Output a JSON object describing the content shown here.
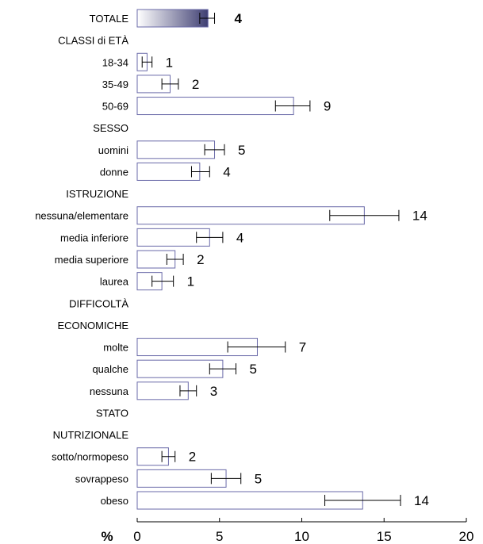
{
  "chart_data": {
    "type": "bar",
    "orientation": "horizontal",
    "x_axis_symbol": "%",
    "xlim": [
      0,
      20
    ],
    "x_ticks": [
      "0",
      "5",
      "10",
      "15",
      "20"
    ],
    "grid": false,
    "legend": "none",
    "colors": {
      "bar_fill": "#ffffff",
      "bar_border": "#6a6aa8",
      "total_gradient_start": "#ffffff",
      "total_gradient_end": "#3f3f72",
      "error_bar": "#000000"
    },
    "rows": [
      {
        "label": "TOTALE",
        "kind": "total",
        "value": 4.3,
        "ci": [
          3.8,
          4.7
        ],
        "value_label": "4"
      },
      {
        "label": "CLASSI di ETÀ",
        "kind": "header"
      },
      {
        "label": "18-34",
        "kind": "bar",
        "value": 0.6,
        "ci": [
          0.3,
          0.9
        ],
        "value_label": "1"
      },
      {
        "label": "35-49",
        "kind": "bar",
        "value": 2.0,
        "ci": [
          1.5,
          2.5
        ],
        "value_label": "2"
      },
      {
        "label": "50-69",
        "kind": "bar",
        "value": 9.5,
        "ci": [
          8.4,
          10.5
        ],
        "value_label": "9"
      },
      {
        "label": "SESSO",
        "kind": "header"
      },
      {
        "label": "uomini",
        "kind": "bar",
        "value": 4.7,
        "ci": [
          4.1,
          5.3
        ],
        "value_label": "5"
      },
      {
        "label": "donne",
        "kind": "bar",
        "value": 3.8,
        "ci": [
          3.3,
          4.4
        ],
        "value_label": "4"
      },
      {
        "label": "ISTRUZIONE",
        "kind": "header"
      },
      {
        "label": "nessuna/elementare",
        "kind": "bar",
        "value": 13.8,
        "ci": [
          11.7,
          15.9
        ],
        "value_label": "14"
      },
      {
        "label": "media inferiore",
        "kind": "bar",
        "value": 4.4,
        "ci": [
          3.6,
          5.2
        ],
        "value_label": "4"
      },
      {
        "label": "media superiore",
        "kind": "bar",
        "value": 2.3,
        "ci": [
          1.8,
          2.8
        ],
        "value_label": "2"
      },
      {
        "label": "laurea",
        "kind": "bar",
        "value": 1.5,
        "ci": [
          0.9,
          2.2
        ],
        "value_label": "1"
      },
      {
        "label": "DIFFICOLTÀ",
        "kind": "header"
      },
      {
        "label": "ECONOMICHE",
        "kind": "header"
      },
      {
        "label": "molte",
        "kind": "bar",
        "value": 7.3,
        "ci": [
          5.5,
          9.0
        ],
        "value_label": "7"
      },
      {
        "label": "qualche",
        "kind": "bar",
        "value": 5.2,
        "ci": [
          4.4,
          6.0
        ],
        "value_label": "5"
      },
      {
        "label": "nessuna",
        "kind": "bar",
        "value": 3.1,
        "ci": [
          2.6,
          3.6
        ],
        "value_label": "3"
      },
      {
        "label": "STATO",
        "kind": "header"
      },
      {
        "label": "NUTRIZIONALE",
        "kind": "header"
      },
      {
        "label": "sotto/normopeso",
        "kind": "bar",
        "value": 1.9,
        "ci": [
          1.5,
          2.3
        ],
        "value_label": "2"
      },
      {
        "label": "sovrappeso",
        "kind": "bar",
        "value": 5.4,
        "ci": [
          4.5,
          6.3
        ],
        "value_label": "5"
      },
      {
        "label": "obeso",
        "kind": "bar",
        "value": 13.7,
        "ci": [
          11.4,
          16.0
        ],
        "value_label": "14"
      }
    ]
  }
}
